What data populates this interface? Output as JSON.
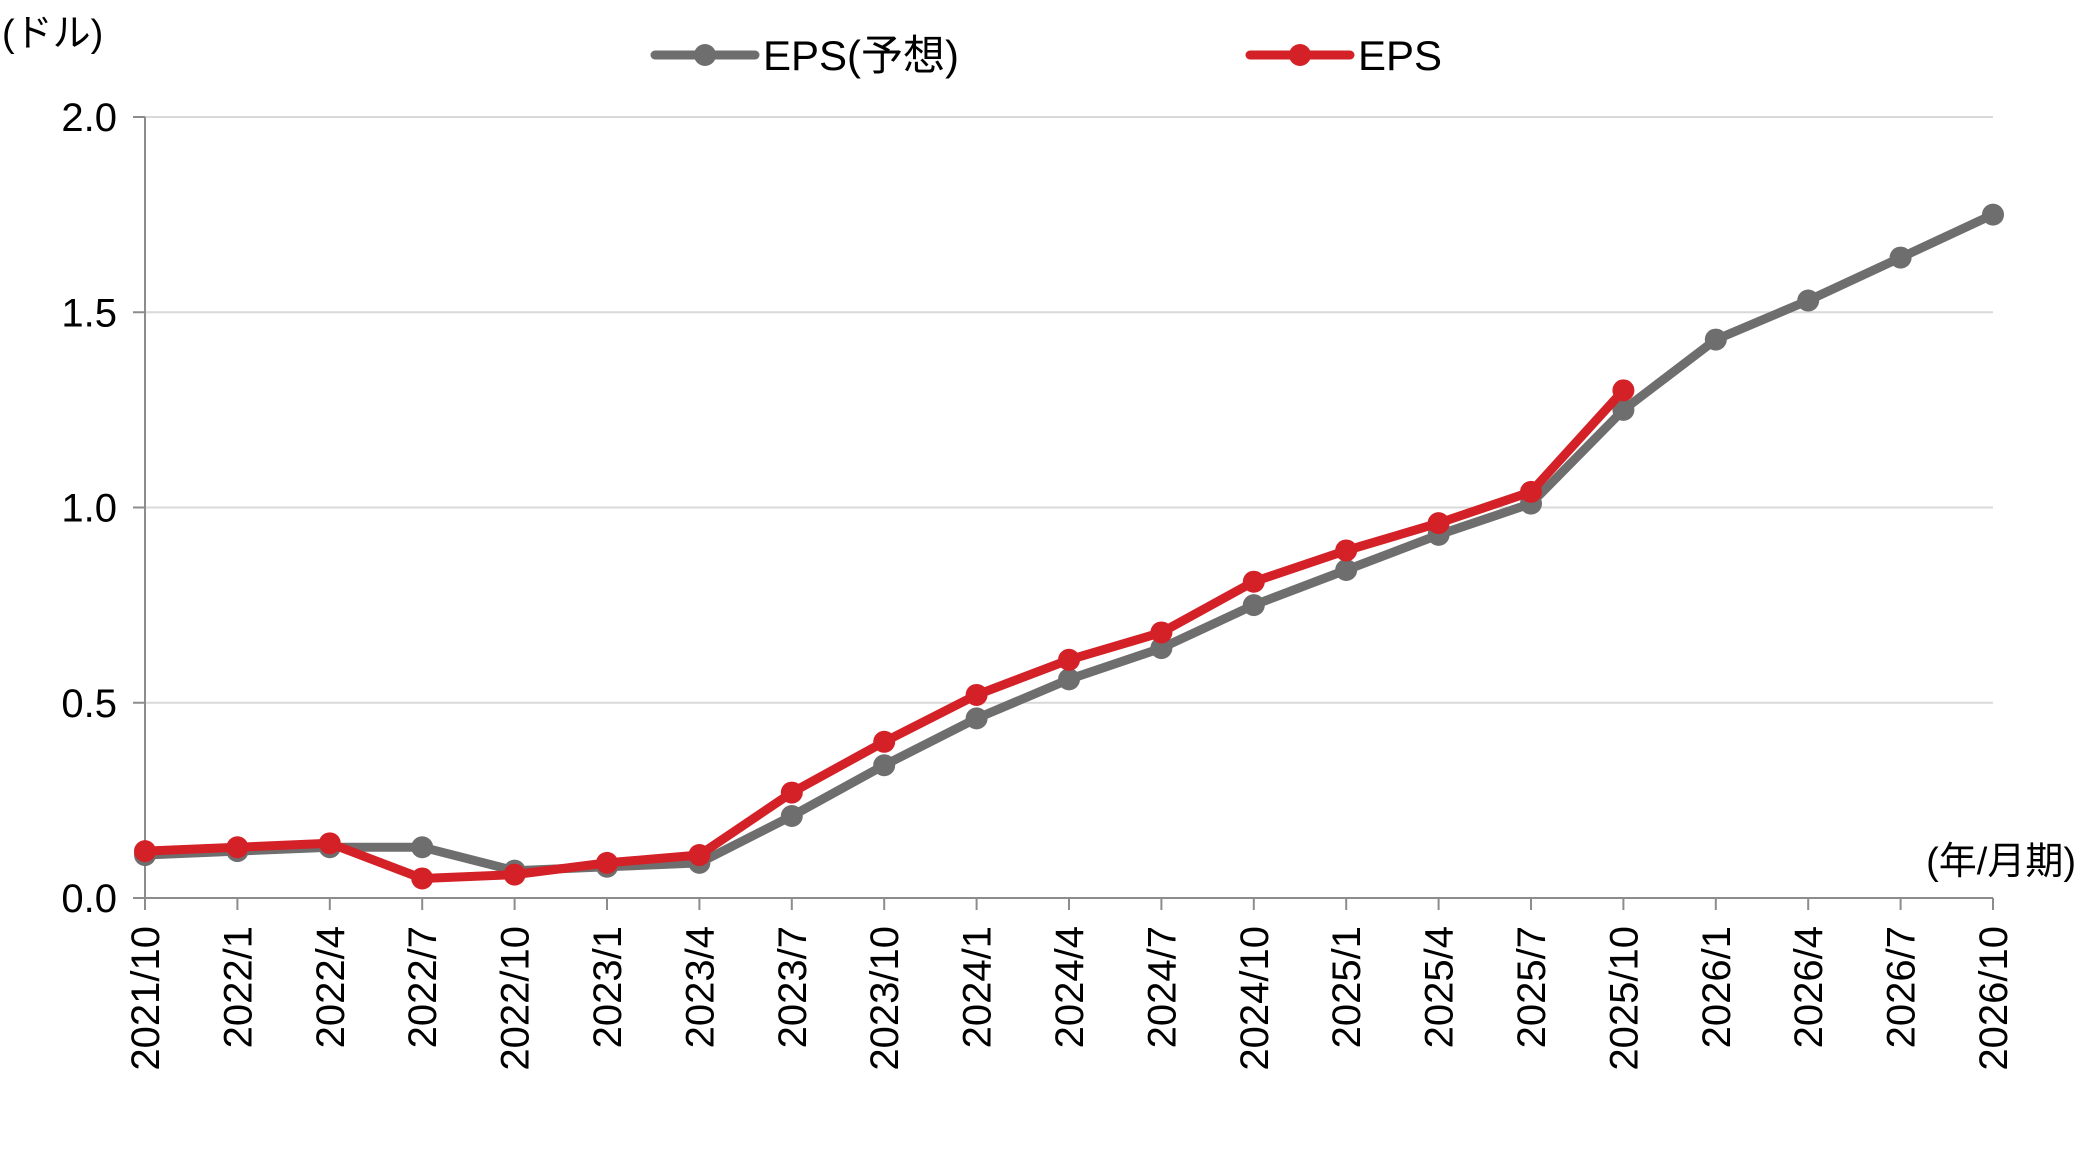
{
  "chart_data": {
    "type": "line",
    "y_unit_label": "(ドル)",
    "x_unit_label": "(年/月期)",
    "categories": [
      "2021/10",
      "2022/1",
      "2022/4",
      "2022/7",
      "2022/10",
      "2023/1",
      "2023/4",
      "2023/7",
      "2023/10",
      "2024/1",
      "2024/4",
      "2024/7",
      "2024/10",
      "2025/1",
      "2025/4",
      "2025/7",
      "2025/10",
      "2026/1",
      "2026/4",
      "2026/7",
      "2026/10"
    ],
    "ylim": [
      0,
      2.0
    ],
    "yticks": [
      "0.0",
      "0.5",
      "1.0",
      "1.5",
      "2.0"
    ],
    "grid": "horizontal",
    "legend_position": "top-center",
    "series": [
      {
        "name": "EPS(予想)",
        "color": "#6e6e6e",
        "values": [
          0.11,
          0.12,
          0.13,
          0.13,
          0.07,
          0.08,
          0.09,
          0.21,
          0.34,
          0.46,
          0.56,
          0.64,
          0.75,
          0.84,
          0.93,
          1.01,
          1.25,
          1.43,
          1.53,
          1.64,
          1.75
        ]
      },
      {
        "name": "EPS",
        "color": "#d42127",
        "values": [
          0.12,
          0.13,
          0.14,
          0.05,
          0.06,
          0.09,
          0.11,
          0.27,
          0.4,
          0.52,
          0.61,
          0.68,
          0.81,
          0.89,
          0.96,
          1.04,
          1.3,
          null,
          null,
          null,
          null
        ]
      }
    ]
  }
}
